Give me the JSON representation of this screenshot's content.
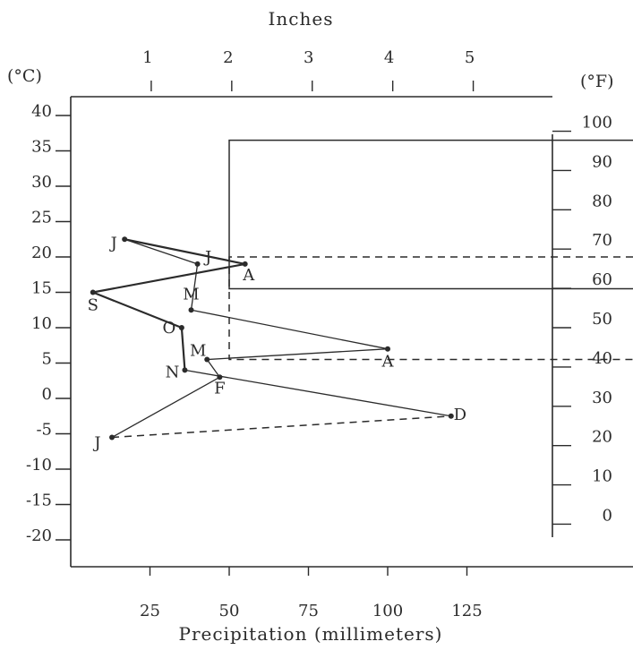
{
  "chart_data": {
    "type": "line",
    "title": "",
    "xlabel": "Precipitation (millimeters)",
    "x2label": "Inches",
    "ylabel_left": "(°C)",
    "ylabel_right": "(°F)",
    "xlim": [
      0,
      148
    ],
    "ylim": [
      -25,
      45
    ],
    "x_ticks": [
      25,
      50,
      75,
      100,
      125
    ],
    "x2_ticks": [
      1,
      2,
      3,
      4,
      5
    ],
    "y_ticks_c": [
      40,
      35,
      30,
      25,
      20,
      15,
      10,
      5,
      0,
      -5,
      -10,
      -15,
      -20
    ],
    "y_tick_labels_c": [
      "40",
      "35",
      "30",
      "25",
      "20",
      "15",
      "10",
      "5",
      "0",
      "-5",
      "-10",
      "-15",
      "-20"
    ],
    "y_ticks_f": [
      100,
      90,
      80,
      70,
      60,
      50,
      40,
      30,
      20,
      10,
      0
    ],
    "grid": false,
    "points": [
      {
        "month": "J",
        "x": 13,
        "y": -5.5
      },
      {
        "month": "F",
        "x": 47,
        "y": 3
      },
      {
        "month": "M",
        "x": 43,
        "y": 5.5
      },
      {
        "month": "A",
        "x": 100,
        "y": 7
      },
      {
        "month": "M",
        "x": 38,
        "y": 12.5
      },
      {
        "month": "J",
        "x": 40,
        "y": 19
      },
      {
        "month": "J",
        "x": 17,
        "y": 22.5
      },
      {
        "month": "A",
        "x": 55,
        "y": 19
      },
      {
        "month": "S",
        "x": 7,
        "y": 15
      },
      {
        "month": "O",
        "x": 35,
        "y": 10
      },
      {
        "month": "N",
        "x": 36,
        "y": 4
      },
      {
        "month": "D",
        "x": 120,
        "y": -2.5
      }
    ],
    "reference_lines": {
      "solid_box": {
        "x": 50,
        "y_top": 36.5,
        "y_bottom": 15.5
      },
      "dashed_box": {
        "x": 50,
        "y_top": 20,
        "y_bottom": 5.5
      },
      "dashed_winter": {
        "from_x": 13,
        "from_y": -5.5,
        "to_x": 120,
        "to_y": -2.5
      }
    }
  }
}
